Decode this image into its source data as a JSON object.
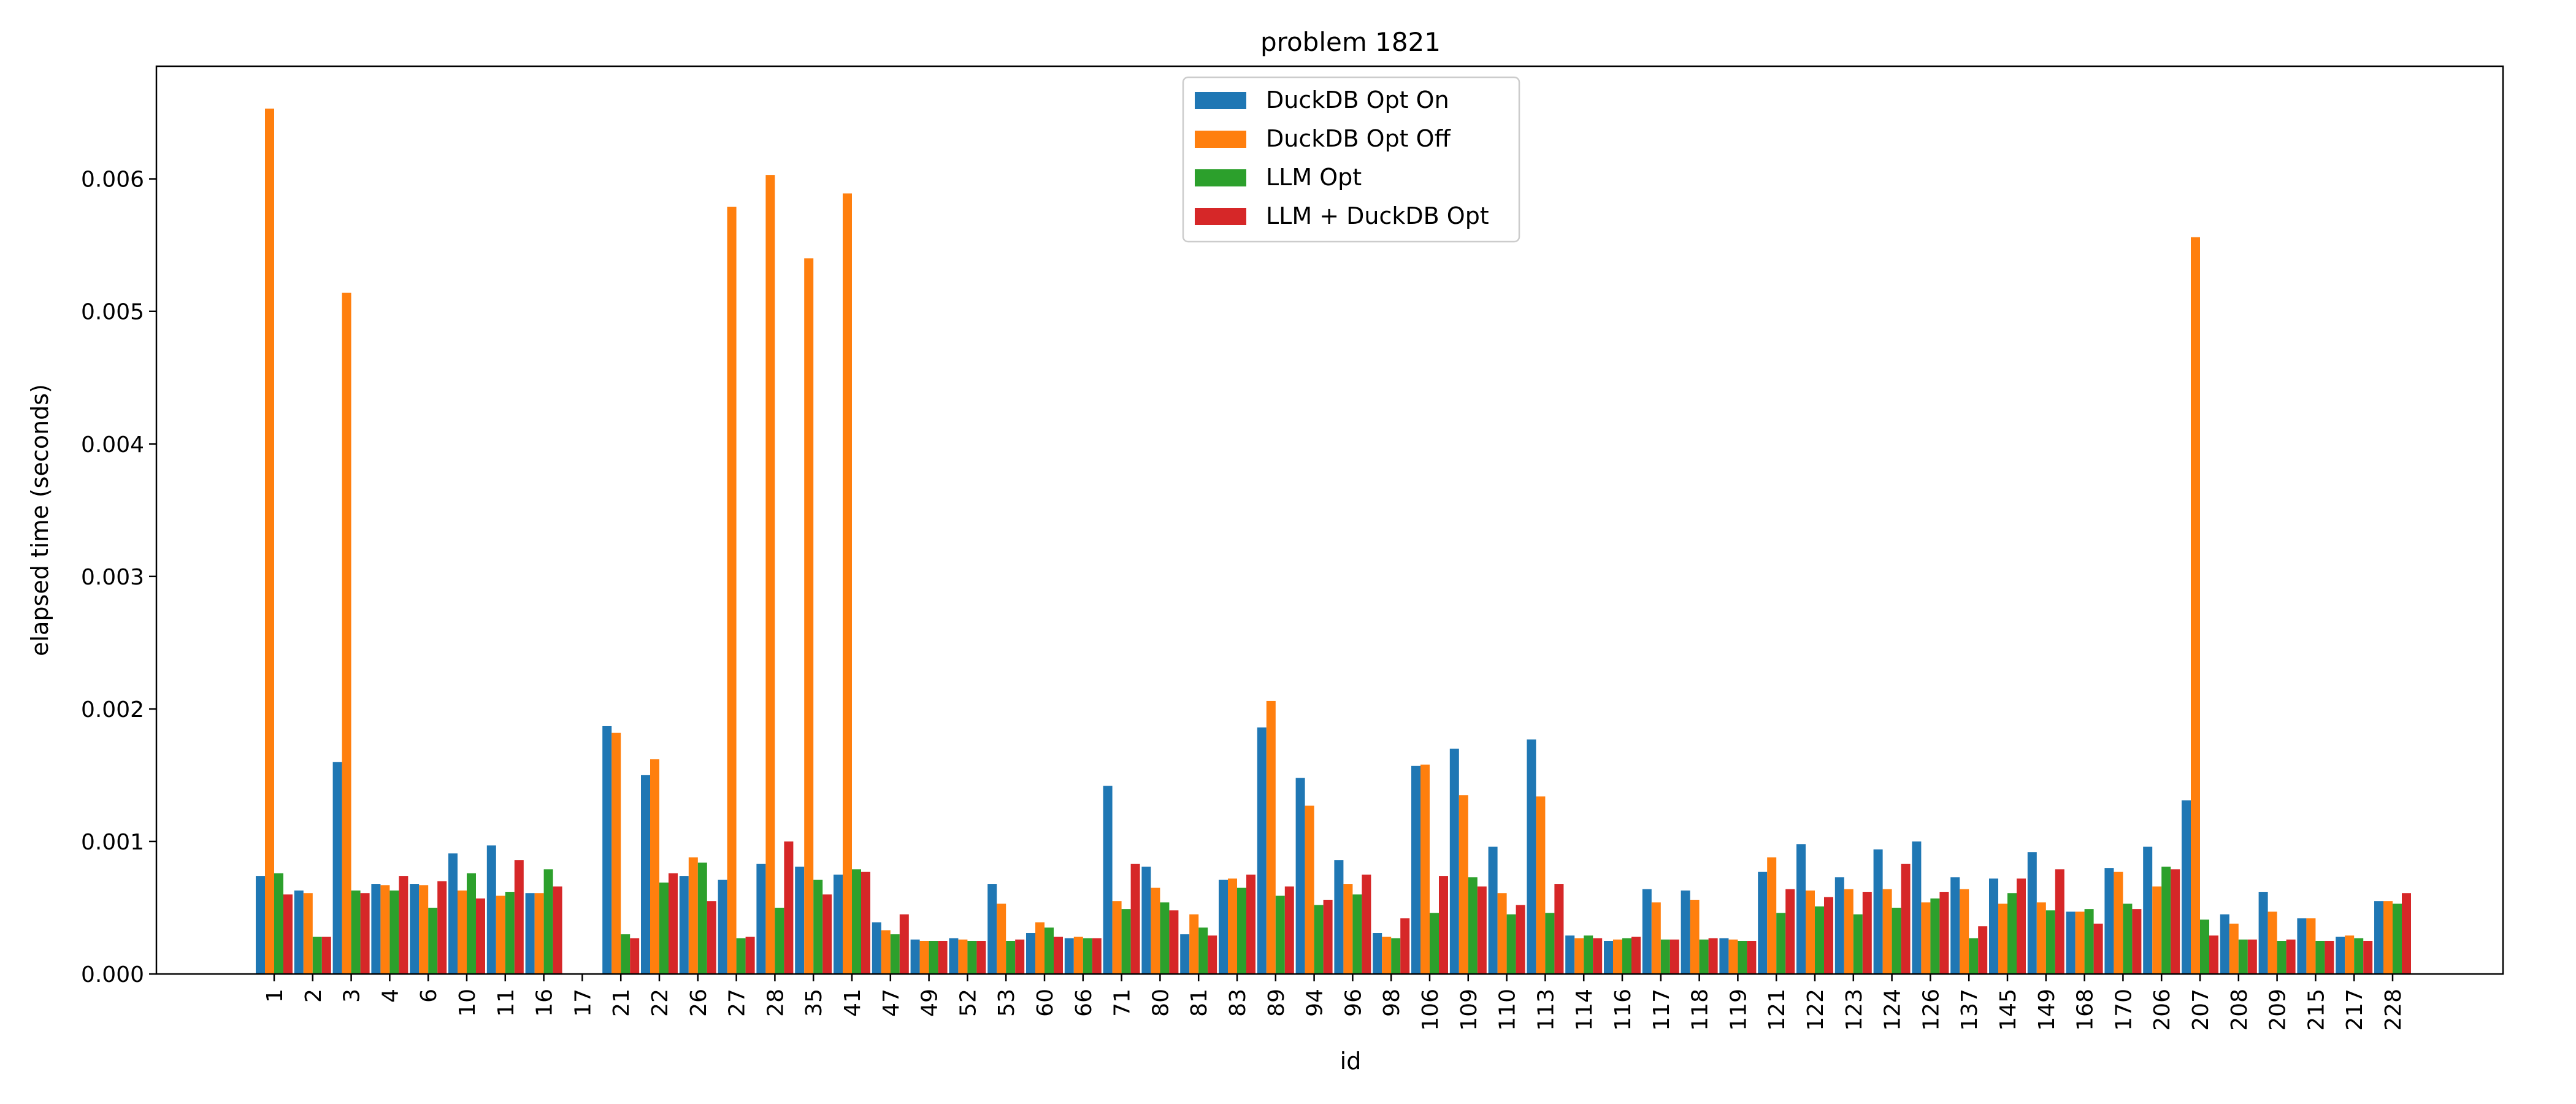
{
  "chart_data": {
    "type": "bar",
    "title": "problem 1821",
    "xlabel": "id",
    "ylabel": "elapsed time (seconds)",
    "ylim": [
      0,
      0.00685
    ],
    "yticks": [
      "0.000",
      "0.001",
      "0.002",
      "0.003",
      "0.004",
      "0.005",
      "0.006"
    ],
    "ytick_values": [
      0,
      0.001,
      0.002,
      0.003,
      0.004,
      0.005,
      0.006
    ],
    "legend_position": "top-center",
    "grid": false,
    "categories": [
      "1",
      "2",
      "3",
      "4",
      "6",
      "10",
      "11",
      "16",
      "17",
      "21",
      "22",
      "26",
      "27",
      "28",
      "35",
      "41",
      "47",
      "49",
      "52",
      "53",
      "60",
      "66",
      "71",
      "80",
      "81",
      "83",
      "89",
      "94",
      "96",
      "98",
      "106",
      "109",
      "110",
      "113",
      "114",
      "116",
      "117",
      "118",
      "119",
      "121",
      "122",
      "123",
      "124",
      "126",
      "137",
      "145",
      "149",
      "168",
      "170",
      "206",
      "207",
      "208",
      "209",
      "215",
      "217",
      "228"
    ],
    "series": [
      {
        "name": "DuckDB Opt On",
        "color": "#1f77b4",
        "values": [
          0.00074,
          0.00063,
          0.0016,
          0.00068,
          0.00068,
          0.00091,
          0.00097,
          0.00061,
          0,
          0.00187,
          0.0015,
          0.00074,
          0.00071,
          0.00083,
          0.00081,
          0.00075,
          0.00039,
          0.00026,
          0.00027,
          0.00068,
          0.00031,
          0.00027,
          0.00142,
          0.00081,
          0.0003,
          0.00071,
          0.00186,
          0.00148,
          0.00086,
          0.00031,
          0.00157,
          0.0017,
          0.00096,
          0.00177,
          0.00029,
          0.00025,
          0.00064,
          0.00063,
          0.00027,
          0.00077,
          0.00098,
          0.00073,
          0.00094,
          0.001,
          0.00073,
          0.00072,
          0.00092,
          0.00047,
          0.0008,
          0.00096,
          0.00131,
          0.00045,
          0.00062,
          0.00042,
          0.00028,
          0.00055
        ]
      },
      {
        "name": "DuckDB Opt Off",
        "color": "#ff7f0e",
        "values": [
          0.00653,
          0.00061,
          0.00514,
          0.00067,
          0.00067,
          0.00063,
          0.00059,
          0.00061,
          0,
          0.00182,
          0.00162,
          0.00088,
          0.00579,
          0.00603,
          0.0054,
          0.00589,
          0.00033,
          0.00025,
          0.00026,
          0.00053,
          0.00039,
          0.00028,
          0.00055,
          0.00065,
          0.00045,
          0.00072,
          0.00206,
          0.00127,
          0.00068,
          0.00028,
          0.00158,
          0.00135,
          0.00061,
          0.00134,
          0.00027,
          0.00026,
          0.00054,
          0.00056,
          0.00026,
          0.00088,
          0.00063,
          0.00064,
          0.00064,
          0.00054,
          0.00064,
          0.00053,
          0.00054,
          0.00047,
          0.00077,
          0.00066,
          0.00556,
          0.00038,
          0.00047,
          0.00042,
          0.00029,
          0.00055
        ]
      },
      {
        "name": "LLM Opt",
        "color": "#2ca02c",
        "values": [
          0.00076,
          0.00028,
          0.00063,
          0.00063,
          0.0005,
          0.00076,
          0.00062,
          0.00079,
          0,
          0.0003,
          0.00069,
          0.00084,
          0.00027,
          0.0005,
          0.00071,
          0.00079,
          0.0003,
          0.00025,
          0.00025,
          0.00025,
          0.00035,
          0.00027,
          0.00049,
          0.00054,
          0.00035,
          0.00065,
          0.00059,
          0.00052,
          0.0006,
          0.00027,
          0.00046,
          0.00073,
          0.00045,
          0.00046,
          0.00029,
          0.00027,
          0.00026,
          0.00026,
          0.00025,
          0.00046,
          0.00051,
          0.00045,
          0.0005,
          0.00057,
          0.00027,
          0.00061,
          0.00048,
          0.00049,
          0.00053,
          0.00081,
          0.00041,
          0.00026,
          0.00025,
          0.00025,
          0.00027,
          0.00053
        ]
      },
      {
        "name": "LLM + DuckDB Opt",
        "color": "#d62728",
        "values": [
          0.0006,
          0.00028,
          0.00061,
          0.00074,
          0.0007,
          0.00057,
          0.00086,
          0.00066,
          0,
          0.00027,
          0.00076,
          0.00055,
          0.00028,
          0.001,
          0.0006,
          0.00077,
          0.00045,
          0.00025,
          0.00025,
          0.00026,
          0.00028,
          0.00027,
          0.00083,
          0.00048,
          0.00029,
          0.00075,
          0.00066,
          0.00056,
          0.00075,
          0.00042,
          0.00074,
          0.00066,
          0.00052,
          0.00068,
          0.00027,
          0.00028,
          0.00026,
          0.00027,
          0.00025,
          0.00064,
          0.00058,
          0.00062,
          0.00083,
          0.00062,
          0.00036,
          0.00072,
          0.00079,
          0.00038,
          0.00049,
          0.00079,
          0.00029,
          0.00026,
          0.00026,
          0.00025,
          0.00025,
          0.00061
        ]
      }
    ]
  }
}
